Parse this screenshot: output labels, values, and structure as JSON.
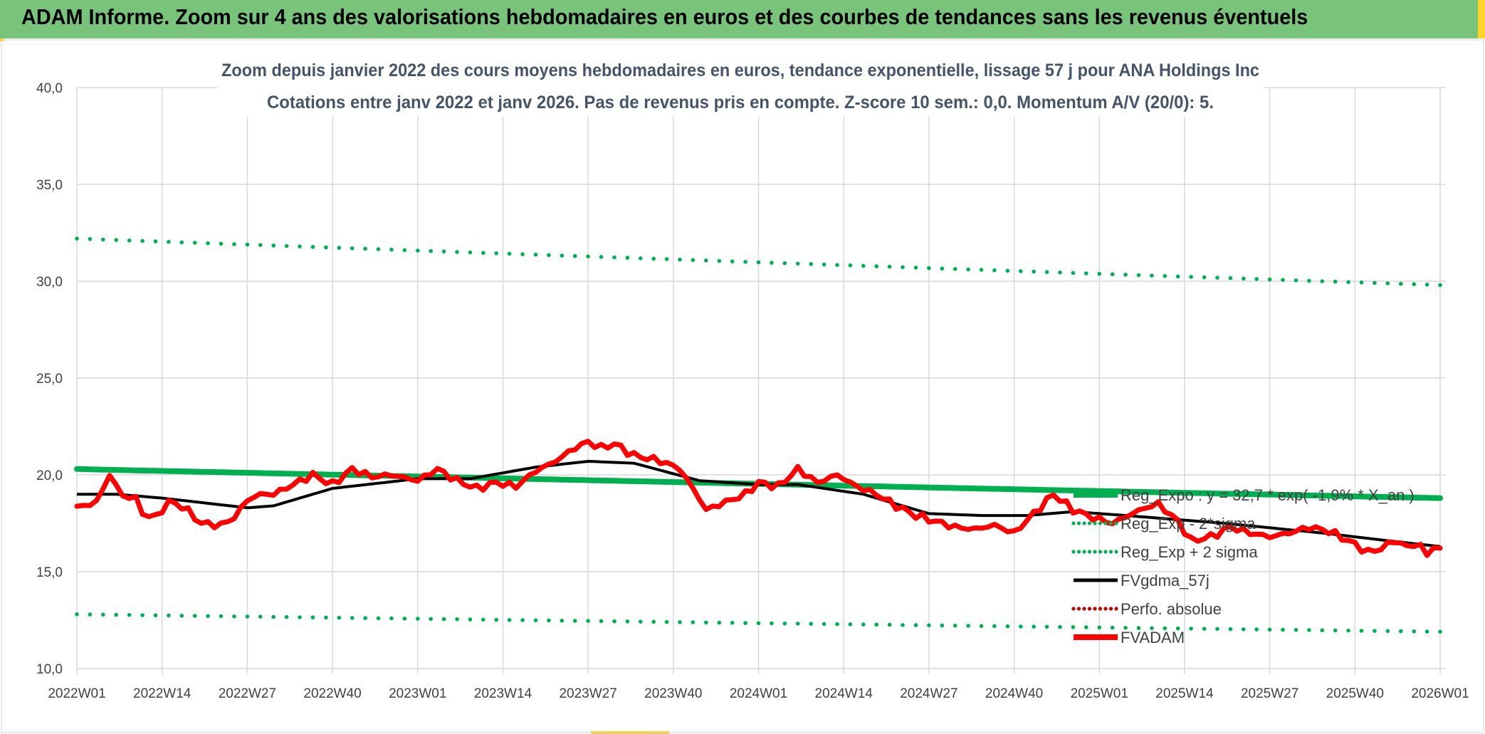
{
  "header": {
    "title": "ADAM Informe. Zoom sur 4 ans des valorisations hebdomadaires en euros et des courbes de tendances sans les revenus éventuels"
  },
  "colors": {
    "header_bg": "#77c47a",
    "accent": "#ffd42a",
    "trend_green": "#00b050",
    "price_red": "#ff0000",
    "gdma_black": "#000000",
    "perf_red": "#c00000",
    "grid": "#d9d9d9",
    "axis_text": "#404040",
    "title_text": "#44546a"
  },
  "chart_data": {
    "type": "line",
    "title_line1": "Zoom depuis janvier 2022 des cours moyens hebdomadaires en euros, tendance exponentielle, lissage 57 j pour ANA Holdings Inc",
    "title_line2": "Cotations entre janv 2022 et janv 2026. Pas de revenus pris en compte. Z-score 10 sem.: 0,0. Momentum A/V (20/0): 5.",
    "xlabel": "",
    "ylabel": "",
    "ylim": [
      10,
      40
    ],
    "y_ticks": [
      "10,0",
      "15,0",
      "20,0",
      "25,0",
      "30,0",
      "35,0",
      "40,0"
    ],
    "y_tick_values": [
      10,
      15,
      20,
      25,
      30,
      35,
      40
    ],
    "x_ticks": [
      "2022W01",
      "2022W14",
      "2022W27",
      "2022W40",
      "2023W01",
      "2023W14",
      "2023W27",
      "2023W40",
      "2024W01",
      "2024W14",
      "2024W27",
      "2024W40",
      "2025W01",
      "2025W14",
      "2025W27",
      "2025W40",
      "2026W01"
    ],
    "week_count": 209,
    "grid": true,
    "legend_position": "bottom-right",
    "series": [
      {
        "name": "Reg_Expo : y = 32,7 * exp( -1,9% * X_an )",
        "style": "solid-thick",
        "color": "#00b050",
        "start": 20.3,
        "end": 18.8
      },
      {
        "name": "Reg_Exp - 2*sigma",
        "style": "dotted",
        "color": "#00b050",
        "start": 12.8,
        "end": 11.9
      },
      {
        "name": "Reg_Exp + 2 sigma",
        "style": "dotted",
        "color": "#00b050",
        "start": 32.2,
        "end": 29.8
      },
      {
        "name": "FVgdma_57j",
        "style": "solid",
        "color": "#000000",
        "knots_week": [
          0,
          6,
          13,
          26,
          30,
          39,
          52,
          60,
          70,
          78,
          85,
          95,
          104,
          110,
          120,
          130,
          138,
          145,
          152,
          160,
          175,
          190,
          200,
          208
        ],
        "knots_value": [
          19.0,
          19.0,
          18.8,
          18.3,
          18.4,
          19.3,
          19.8,
          19.8,
          20.4,
          20.7,
          20.6,
          19.7,
          19.5,
          19.5,
          19.0,
          18.0,
          17.9,
          17.9,
          18.1,
          17.9,
          17.5,
          17.0,
          16.6,
          16.3
        ]
      },
      {
        "name": "Perfo. absolue",
        "style": "dotted",
        "color": "#c00000",
        "values": []
      },
      {
        "name": "FVADAM",
        "style": "solid-thick",
        "color": "#ff0000",
        "knots_week": [
          0,
          3,
          5,
          7,
          9,
          10,
          12,
          14,
          16,
          19,
          22,
          24,
          26,
          28,
          30,
          33,
          36,
          39,
          42,
          45,
          48,
          52,
          55,
          58,
          61,
          64,
          67,
          70,
          73,
          76,
          78,
          80,
          82,
          85,
          88,
          90,
          92,
          94,
          96,
          99,
          102,
          104,
          107,
          110,
          113,
          116,
          119,
          122,
          125,
          128,
          131,
          134,
          137,
          140,
          143,
          146,
          149,
          152,
          155,
          158,
          161,
          163,
          165,
          168,
          170,
          173,
          176,
          179,
          182,
          185,
          188,
          191,
          194,
          197,
          199,
          201,
          203,
          205,
          206,
          207,
          208
        ],
        "knots_value": [
          18.3,
          18.6,
          20.0,
          18.9,
          18.8,
          18.0,
          17.8,
          18.6,
          18.4,
          17.5,
          17.4,
          17.8,
          18.7,
          19.0,
          19.0,
          19.5,
          20.0,
          19.5,
          20.3,
          19.9,
          20.0,
          19.7,
          20.3,
          19.7,
          19.3,
          19.6,
          19.4,
          20.2,
          20.7,
          21.4,
          21.7,
          21.4,
          21.6,
          21.0,
          20.8,
          20.6,
          20.3,
          19.3,
          18.2,
          18.6,
          19.0,
          19.6,
          19.4,
          20.3,
          19.6,
          20.0,
          19.4,
          19.0,
          18.4,
          17.9,
          17.6,
          17.3,
          17.2,
          17.4,
          17.0,
          18.0,
          19.0,
          18.2,
          17.8,
          17.5,
          18.0,
          18.3,
          18.5,
          17.6,
          16.6,
          16.8,
          17.3,
          17.0,
          16.8,
          17.0,
          17.3,
          17.1,
          16.6,
          16.0,
          16.2,
          16.6,
          16.3,
          16.4,
          15.8,
          16.3,
          16.2
        ]
      }
    ]
  }
}
